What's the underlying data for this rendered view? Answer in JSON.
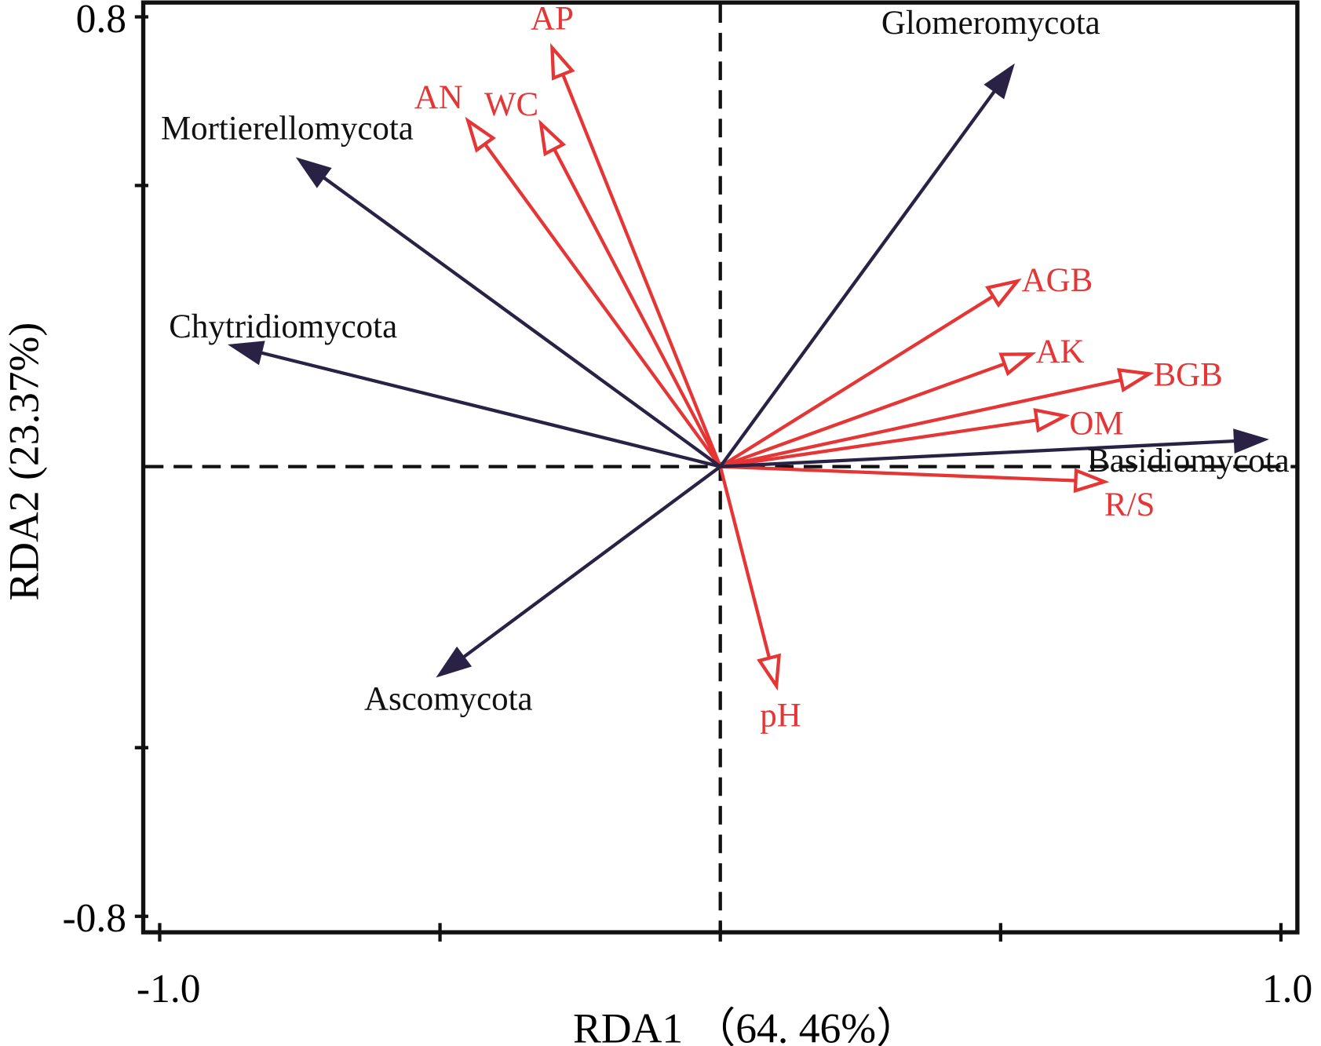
{
  "chart_data": {
    "type": "biplot",
    "xlabel": "RDA1 （64. 46%）",
    "ylabel": "RDA2 (23.37%)",
    "xlim": [
      -1.0,
      1.0
    ],
    "ylim": [
      -0.8,
      0.8
    ],
    "x_tick_labels": [
      "-1.0",
      "1.0"
    ],
    "y_tick_labels": [
      "0.8",
      "-0.8"
    ],
    "grid": false,
    "reference_lines": "dashed at x=0 and y=0",
    "colors": {
      "species": "#2a2245",
      "environment": "#e53535",
      "axes": "#111111"
    },
    "species": [
      {
        "name": "Glomeromycota",
        "x": 0.52,
        "y": 0.71
      },
      {
        "name": "Mortierellomycota",
        "x": -0.75,
        "y": 0.545
      },
      {
        "name": "Chytridiomycota",
        "x": -0.87,
        "y": 0.215
      },
      {
        "name": "Ascomycota",
        "x": -0.5,
        "y": -0.37
      },
      {
        "name": "Basidiomycota",
        "x": 0.97,
        "y": 0.048
      }
    ],
    "environment": [
      {
        "name": "AP",
        "x": -0.3,
        "y": 0.745
      },
      {
        "name": "AN",
        "x": -0.45,
        "y": 0.615
      },
      {
        "name": "WC",
        "x": -0.32,
        "y": 0.61
      },
      {
        "name": "AGB",
        "x": 0.53,
        "y": 0.33
      },
      {
        "name": "AK",
        "x": 0.555,
        "y": 0.2
      },
      {
        "name": "BGB",
        "x": 0.765,
        "y": 0.165
      },
      {
        "name": "OM",
        "x": 0.615,
        "y": 0.09
      },
      {
        "name": "R/S",
        "x": 0.685,
        "y": -0.027
      },
      {
        "name": "pH",
        "x": 0.1,
        "y": -0.39
      }
    ]
  }
}
